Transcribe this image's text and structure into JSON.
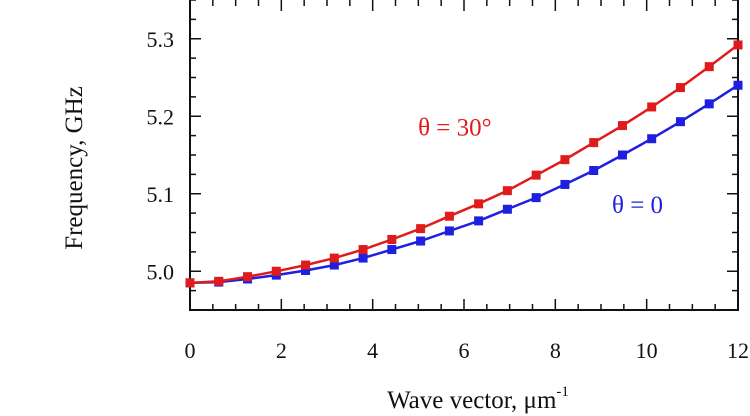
{
  "chart_data": {
    "type": "line",
    "xlabel": "Wave vector, μm",
    "xlabel_superscript": "-1",
    "ylabel": "Frequency, GHz",
    "xlim": [
      0,
      12
    ],
    "ylim": [
      4.95,
      5.35
    ],
    "xticks": [
      0,
      2,
      4,
      6,
      8,
      10,
      12
    ],
    "yticks": [
      5.0,
      5.1,
      5.2,
      5.3
    ],
    "ytick_labels": [
      "5.0",
      "5.1",
      "5.2",
      "5.3"
    ],
    "grid": false,
    "series": [
      {
        "name": "θ = 30°",
        "color": "#e01b1b",
        "marker": "square",
        "x": [
          0,
          0.63,
          1.26,
          1.89,
          2.53,
          3.16,
          3.79,
          4.42,
          5.05,
          5.68,
          6.32,
          6.95,
          7.58,
          8.21,
          8.84,
          9.47,
          10.11,
          10.74,
          11.37,
          12.0
        ],
        "y": [
          4.985,
          4.987,
          4.993,
          5.0,
          5.008,
          5.017,
          5.028,
          5.041,
          5.055,
          5.071,
          5.087,
          5.104,
          5.124,
          5.144,
          5.166,
          5.188,
          5.212,
          5.237,
          5.264,
          5.292
        ]
      },
      {
        "name": "θ = 0",
        "color": "#1f1fe0",
        "marker": "square",
        "x": [
          0,
          0.63,
          1.26,
          1.89,
          2.53,
          3.16,
          3.79,
          4.42,
          5.05,
          5.68,
          6.32,
          6.95,
          7.58,
          8.21,
          8.84,
          9.47,
          10.11,
          10.74,
          11.37,
          12.0
        ],
        "y": [
          4.985,
          4.986,
          4.99,
          4.995,
          5.001,
          5.008,
          5.017,
          5.028,
          5.039,
          5.052,
          5.065,
          5.08,
          5.095,
          5.112,
          5.13,
          5.15,
          5.171,
          5.193,
          5.216,
          5.24
        ]
      }
    ],
    "annotations": [
      {
        "text": "θ = 30°",
        "color": "#e01b1b",
        "x": 5.8,
        "y": 5.175
      },
      {
        "text": "θ = 0",
        "color": "#1f1fe0",
        "x": 9.8,
        "y": 5.075
      }
    ]
  }
}
